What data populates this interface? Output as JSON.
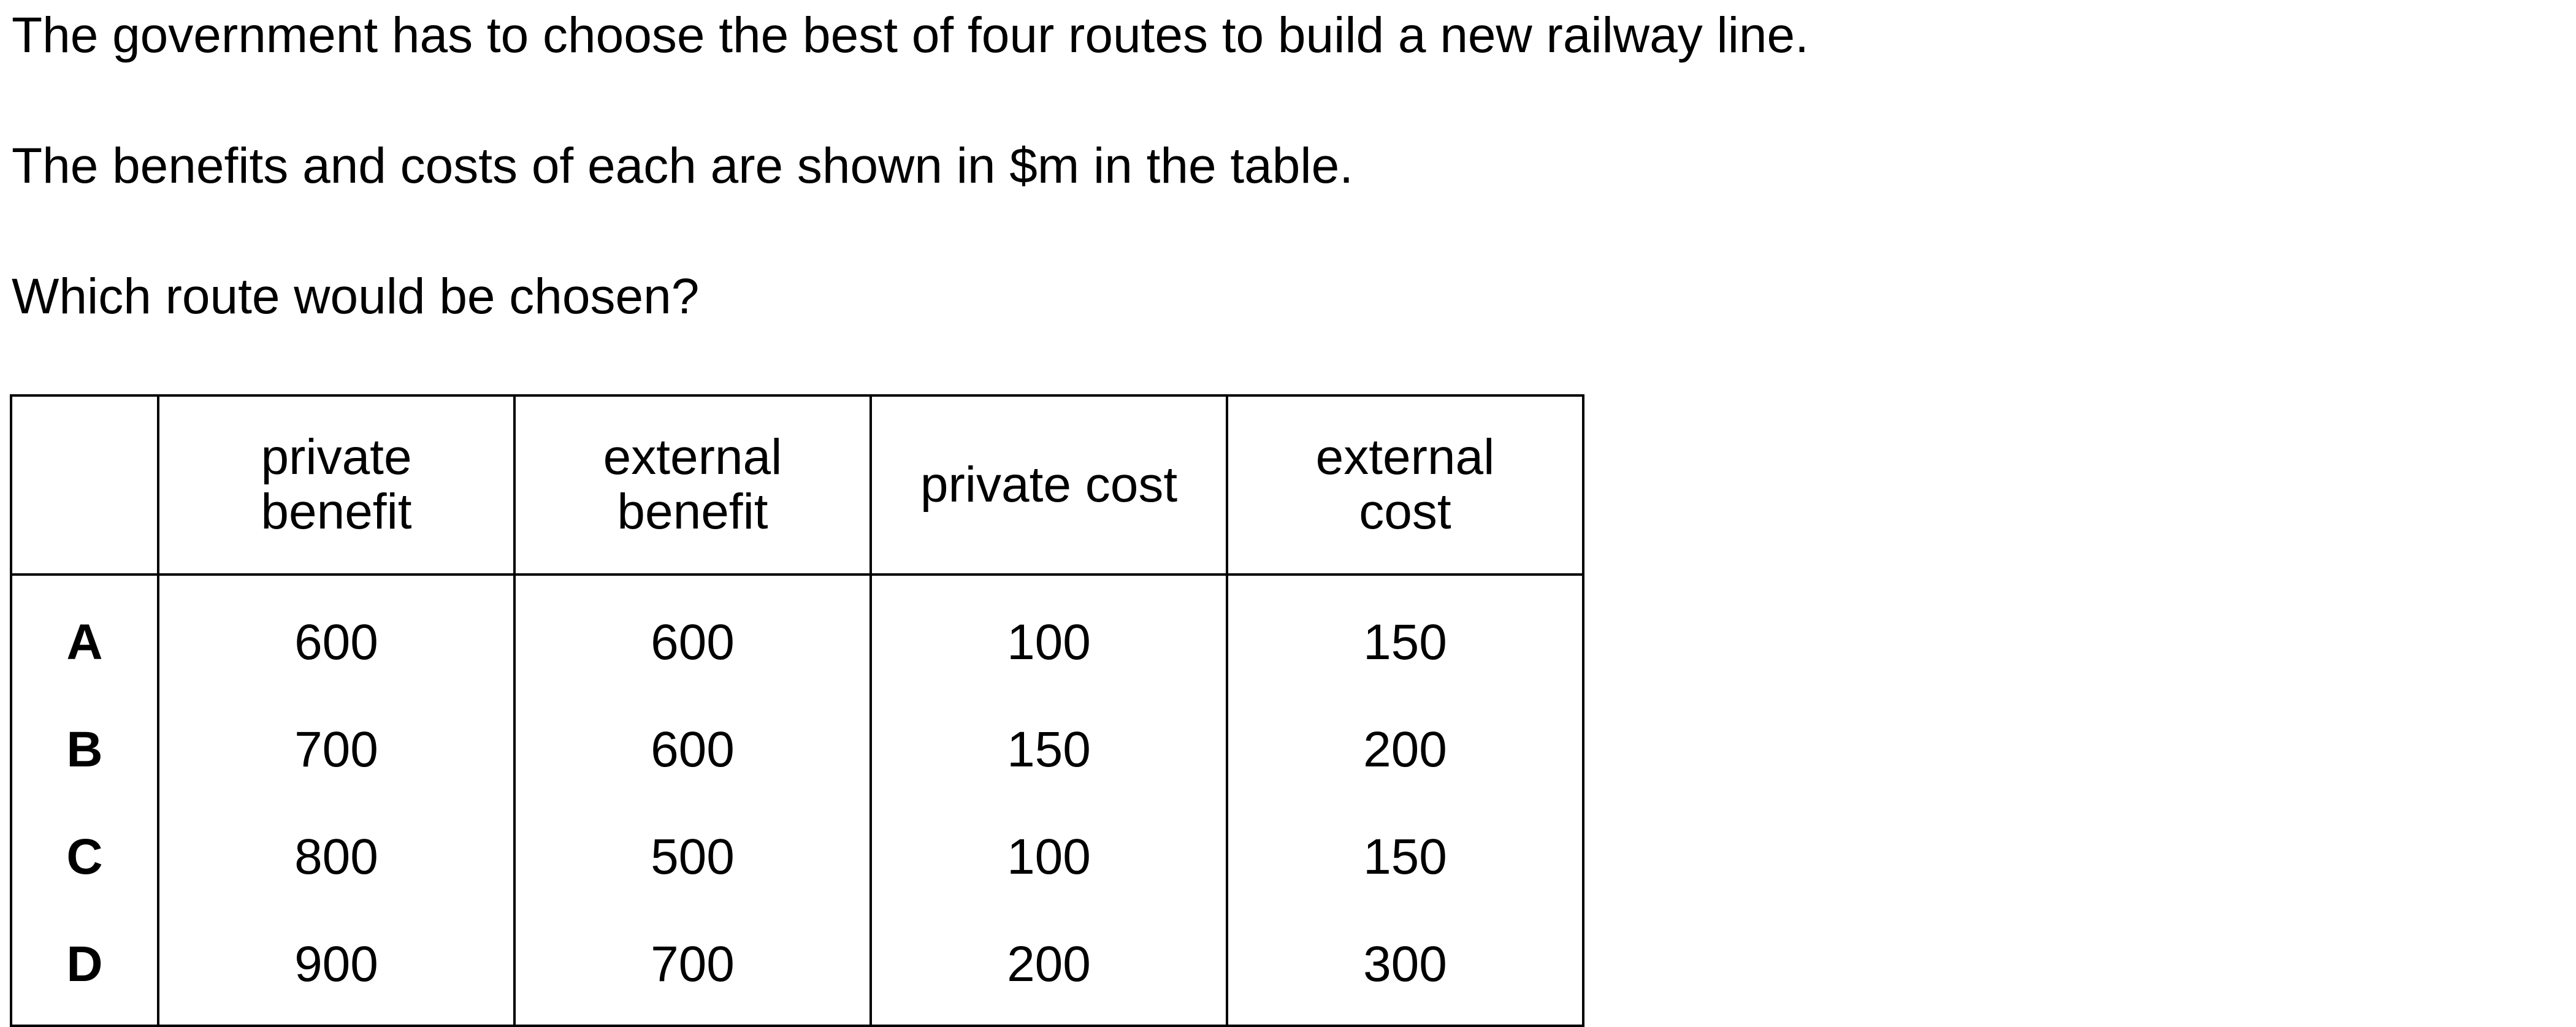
{
  "question": {
    "line1": "The government has to choose the best of four routes to build a new railway line.",
    "line2": "The benefits and costs of each are shown in $m in the table.",
    "line3": "Which route would be chosen?"
  },
  "table": {
    "headers": [
      {
        "line1": "private",
        "line2": "benefit"
      },
      {
        "line1": "external",
        "line2": "benefit"
      },
      {
        "line1": "private cost",
        "line2": ""
      },
      {
        "line1": "external",
        "line2": "cost"
      }
    ],
    "rows": [
      {
        "key": "A",
        "private_benefit": "600",
        "external_benefit": "600",
        "private_cost": "100",
        "external_cost": "150"
      },
      {
        "key": "B",
        "private_benefit": "700",
        "external_benefit": "600",
        "private_cost": "150",
        "external_cost": "200"
      },
      {
        "key": "C",
        "private_benefit": "800",
        "external_benefit": "500",
        "private_cost": "100",
        "external_cost": "150"
      },
      {
        "key": "D",
        "private_benefit": "900",
        "external_benefit": "700",
        "private_cost": "200",
        "external_cost": "300"
      }
    ]
  }
}
